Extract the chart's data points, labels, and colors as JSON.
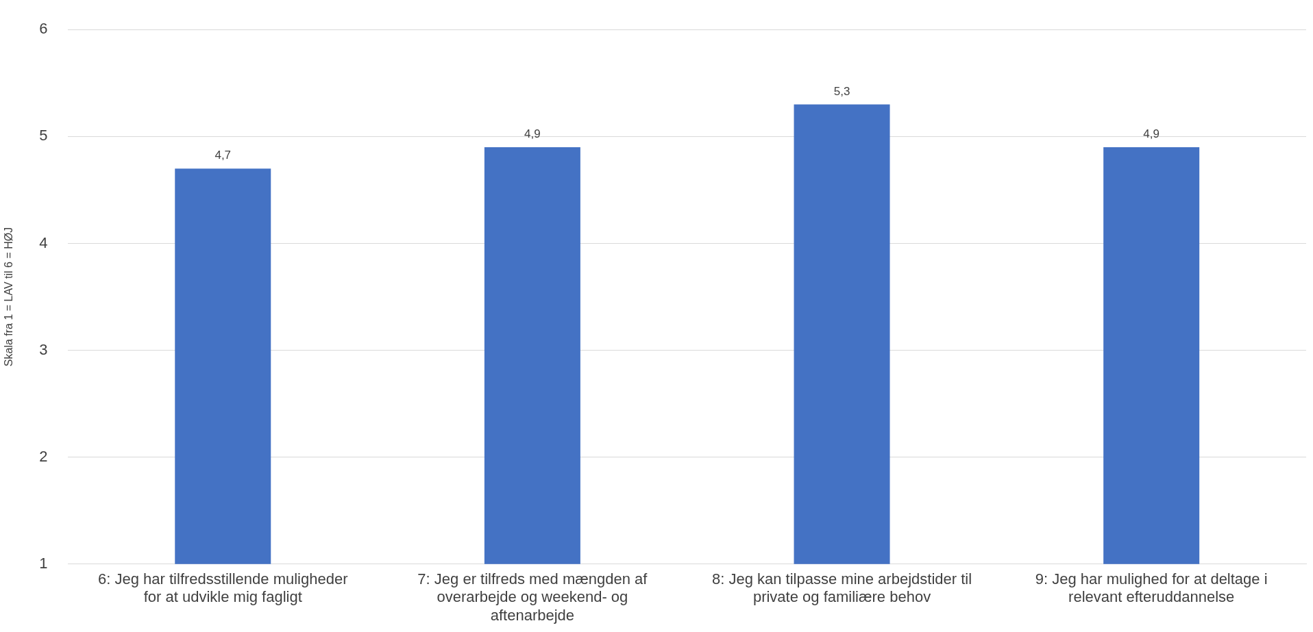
{
  "chart_data": {
    "type": "bar",
    "ylabel": "Skala fra 1 = LAV til 6 = HØJ",
    "categories": [
      "6: Jeg har tilfredsstillende muligheder for at udvikle mig fagligt",
      "7: Jeg er tilfreds med mængden af overarbejde og weekend- og aftenarbejde",
      "8: Jeg kan tilpasse mine arbejdstider til private og familiære behov",
      "9: Jeg har mulighed for at deltage i relevant efteruddannelse"
    ],
    "values": [
      4.7,
      4.9,
      5.3,
      4.9
    ],
    "value_labels": [
      "4,7",
      "4,9",
      "5,3",
      "4,9"
    ],
    "color": "#4472c4",
    "ylim": [
      1,
      6
    ],
    "yticks": [
      1,
      2,
      3,
      4,
      5,
      6
    ],
    "grid": "y",
    "legend": false
  }
}
